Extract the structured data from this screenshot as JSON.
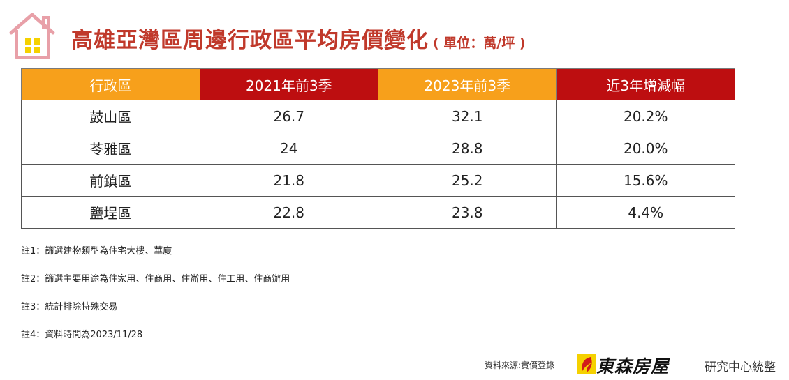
{
  "header": {
    "title": "高雄亞灣區周邊行政區平均房價變化",
    "unit": "( 單位：萬/坪 )"
  },
  "table": {
    "columns": [
      "行政區",
      "2021年前3季",
      "2023年前3季",
      "近3年增減幅"
    ],
    "rows": [
      [
        "鼓山區",
        "26.7",
        "32.1",
        "20.2%"
      ],
      [
        "苓雅區",
        "24",
        "28.8",
        "20.0%"
      ],
      [
        "前鎮區",
        "21.8",
        "25.2",
        "15.6%"
      ],
      [
        "鹽埕區",
        "22.8",
        "23.8",
        "4.4%"
      ]
    ]
  },
  "notes": [
    "註1：篩選建物類型為住宅大樓、華廈",
    "註2：篩選主要用途為住家用、住商用、住辦用、住工用、住商辦用",
    "註3：統計排除特殊交易",
    "註4：資料時間為2023/11/28"
  ],
  "footer": {
    "source": "資料來源:實價登錄",
    "brand": "東森房屋",
    "dept": "研究中心統整"
  },
  "colors": {
    "title": "#c0392b",
    "header_orange": "#f7a01b",
    "header_red": "#bd0e10",
    "house_outline": "#e8a0a8",
    "window": "#f5d100"
  },
  "icons": [
    "house-icon",
    "brand-logo-icon"
  ]
}
